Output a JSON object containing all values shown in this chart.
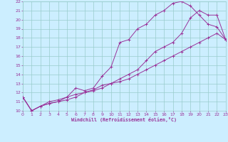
{
  "xlabel": "Windchill (Refroidissement éolien,°C)",
  "bg_color": "#cceeff",
  "grid_color": "#99cccc",
  "line_color": "#993399",
  "xmin": 0,
  "xmax": 23,
  "ymin": 10,
  "ymax": 22,
  "line1_x": [
    0,
    1,
    2,
    3,
    4,
    5,
    6,
    7,
    8,
    9,
    10,
    11,
    12,
    13,
    14,
    15,
    16,
    17,
    18,
    19,
    20,
    21,
    22,
    23
  ],
  "line1_y": [
    11.5,
    10.0,
    10.5,
    10.8,
    11.0,
    11.5,
    12.5,
    12.2,
    12.5,
    13.8,
    14.8,
    17.5,
    17.8,
    19.0,
    19.5,
    20.5,
    21.0,
    21.8,
    22.0,
    21.5,
    20.5,
    19.5,
    19.2,
    17.8
  ],
  "line2_x": [
    0,
    1,
    2,
    3,
    4,
    5,
    6,
    7,
    8,
    9,
    10,
    11,
    12,
    13,
    14,
    15,
    16,
    17,
    18,
    19,
    20,
    21,
    22,
    23
  ],
  "line2_y": [
    11.5,
    10.0,
    10.5,
    11.0,
    11.2,
    11.5,
    11.8,
    12.0,
    12.3,
    12.8,
    13.0,
    13.5,
    14.0,
    14.5,
    15.5,
    16.5,
    17.0,
    17.5,
    18.5,
    20.2,
    21.0,
    20.5,
    20.5,
    17.8
  ],
  "line3_x": [
    0,
    1,
    2,
    3,
    4,
    5,
    6,
    7,
    8,
    9,
    10,
    11,
    12,
    13,
    14,
    15,
    16,
    17,
    18,
    19,
    20,
    21,
    22,
    23
  ],
  "line3_y": [
    11.5,
    10.0,
    10.5,
    10.8,
    11.0,
    11.2,
    11.5,
    12.0,
    12.2,
    12.5,
    13.0,
    13.2,
    13.5,
    14.0,
    14.5,
    15.0,
    15.5,
    16.0,
    16.5,
    17.0,
    17.5,
    18.0,
    18.5,
    17.8
  ]
}
